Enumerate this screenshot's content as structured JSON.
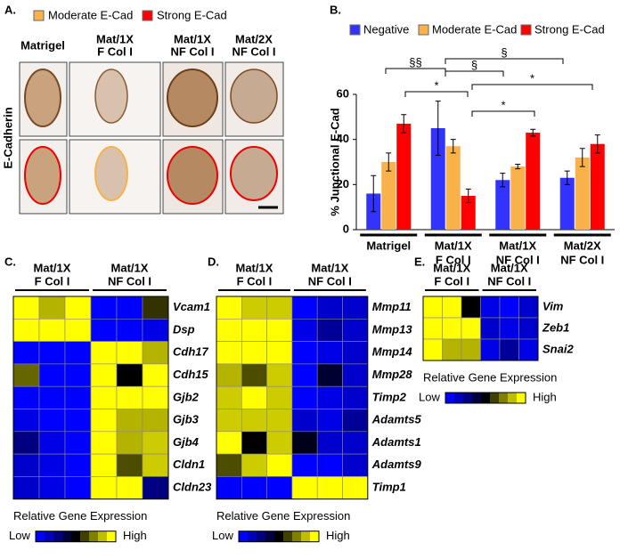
{
  "panel_a": {
    "panel_label": "A.",
    "legend": [
      {
        "name": "Moderate E-Cad",
        "color": "#f9b24a"
      },
      {
        "name": "Strong E-Cad",
        "color": "#ff0000"
      }
    ],
    "columns": [
      [
        "Matrigel"
      ],
      [
        "Mat/1X",
        "F Col I"
      ],
      [
        "Mat/1X",
        "NF Col I"
      ],
      [
        "Mat/2X",
        "NF Col I"
      ]
    ],
    "row_label": "E-Cadherin"
  },
  "chart_data": [
    {
      "type": "bar",
      "panel_label": "B.",
      "y_label": "% Junctional E-Cad",
      "categories": [
        [
          "Matrigel"
        ],
        [
          "Mat/1X",
          "F Col I"
        ],
        [
          "Mat/1X",
          "NF Col I"
        ],
        [
          "Mat/2X",
          "NF Col I"
        ]
      ],
      "series": [
        {
          "name": "Negative",
          "color": "#3333ff",
          "values": [
            16,
            45,
            22,
            23
          ],
          "errors": [
            8,
            12,
            3,
            3
          ]
        },
        {
          "name": "Moderate E-Cad",
          "color": "#f9b24a",
          "values": [
            30,
            37,
            28,
            32
          ],
          "errors": [
            4,
            3,
            1,
            4
          ]
        },
        {
          "name": "Strong E-Cad",
          "color": "#ff0000",
          "values": [
            47,
            15,
            43,
            38
          ],
          "errors": [
            4,
            3,
            1.5,
            4
          ]
        }
      ],
      "ylim": [
        0,
        60
      ],
      "yticks": [
        0,
        20,
        40,
        60
      ],
      "annotations": [
        "§§",
        "§",
        "§",
        "*",
        "*",
        "*"
      ]
    },
    {
      "type": "heatmap",
      "panel_label": "C.",
      "column_groups": [
        [
          "Mat/1X",
          "F Col I"
        ],
        [
          "Mat/1X",
          "NF Col I"
        ]
      ],
      "rows": [
        "Vcam1",
        "Dsp",
        "Cdh17",
        "Cdh15",
        "Gjb2",
        "Gjb3",
        "Gjb4",
        "Cldn1",
        "Cldn23"
      ],
      "values": [
        [
          1,
          0.85,
          1,
          0,
          0,
          0.6
        ],
        [
          1,
          1,
          1,
          0,
          0,
          0.05
        ],
        [
          0,
          0,
          0,
          1,
          1,
          0.85
        ],
        [
          0.7,
          0,
          0,
          1,
          0.5,
          1
        ],
        [
          0,
          0,
          0,
          1,
          1,
          1
        ],
        [
          0.05,
          0,
          0,
          1,
          0.85,
          0.85
        ],
        [
          0.25,
          0.05,
          0,
          1,
          0.85,
          0.9
        ],
        [
          0.1,
          0.05,
          0,
          1,
          0.65,
          0.9
        ],
        [
          0.1,
          0.05,
          0,
          1,
          1,
          0.25
        ]
      ],
      "colorbar_title": "Relative Gene Expression",
      "colorbar_labels": [
        "Low",
        "High"
      ],
      "colors": [
        "#0000ff",
        "#000000",
        "#ffff00"
      ]
    },
    {
      "type": "heatmap",
      "panel_label": "D.",
      "column_groups": [
        [
          "Mat/1X",
          "F Col I"
        ],
        [
          "Mat/1X",
          "NF Col I"
        ]
      ],
      "rows": [
        "Mmp11",
        "Mmp13",
        "Mmp14",
        "Mmp28",
        "Timp2",
        "Adamts5",
        "Adamts1",
        "Adamts9",
        "Timp1"
      ],
      "values": [
        [
          1,
          0.9,
          0.9,
          0,
          0.1,
          0.1
        ],
        [
          1,
          1,
          1,
          0.05,
          0.2,
          0.1
        ],
        [
          1,
          1,
          1,
          0,
          0.05,
          0.1
        ],
        [
          0.85,
          0.65,
          0.9,
          0,
          0.4,
          0.1
        ],
        [
          0.9,
          1,
          0.9,
          0,
          0.05,
          0.1
        ],
        [
          0.9,
          0.9,
          0.9,
          0.1,
          0.05,
          0.2
        ],
        [
          1,
          0.5,
          0.9,
          0.45,
          0.1,
          0.1
        ],
        [
          0.65,
          0.9,
          1,
          0,
          0,
          0.1
        ],
        [
          0,
          0,
          0,
          1,
          1,
          1
        ]
      ],
      "colorbar_title": "Relative Gene Expression",
      "colorbar_labels": [
        "Low",
        "High"
      ],
      "colors": [
        "#0000ff",
        "#000000",
        "#ffff00"
      ]
    },
    {
      "type": "heatmap",
      "panel_label": "E.",
      "column_groups": [
        [
          "Mat/1X",
          "F Col I"
        ],
        [
          "Mat/1X",
          "NF Col I"
        ]
      ],
      "rows": [
        "Vim",
        "Zeb1",
        "Snai2"
      ],
      "values": [
        [
          1,
          1,
          0.5,
          0.05,
          0,
          0.1
        ],
        [
          1,
          1,
          1,
          0.1,
          0.05,
          0.1
        ],
        [
          1,
          0.85,
          0.85,
          0.05,
          0.2,
          0.05
        ]
      ],
      "colorbar_title": "Relative Gene Expression",
      "colorbar_labels": [
        "Low",
        "High"
      ],
      "colors": [
        "#0000ff",
        "#000000",
        "#ffff00"
      ]
    }
  ]
}
